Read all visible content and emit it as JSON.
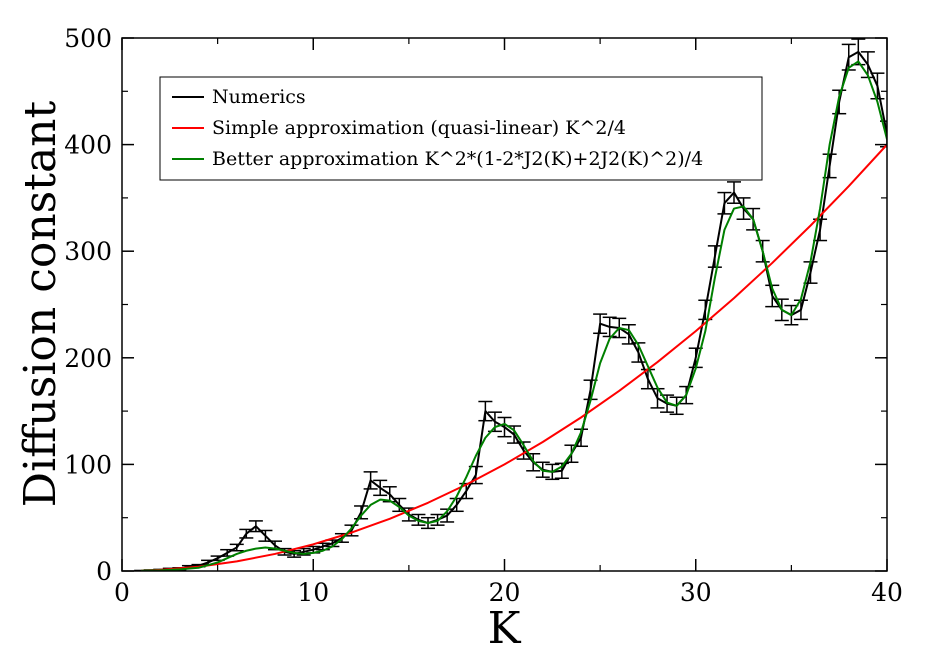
{
  "chart_data": {
    "type": "line",
    "xlabel": "K",
    "ylabel": "Diffusion constant",
    "xlim": [
      0,
      40
    ],
    "ylim": [
      0,
      500
    ],
    "xticks": [
      "0",
      "10",
      "20",
      "30",
      "40"
    ],
    "yticks": [
      "0",
      "100",
      "200",
      "300",
      "400",
      "500"
    ],
    "grid": false,
    "legend_position": "top-left",
    "series": [
      {
        "name": "Numerics",
        "color": "#000000",
        "style": "line-with-errorbars",
        "x": [
          1,
          1.5,
          2,
          2.5,
          3,
          3.5,
          4,
          4.5,
          5,
          5.5,
          6,
          6.5,
          7,
          7.5,
          8,
          8.5,
          9,
          9.5,
          10,
          10.5,
          11,
          11.5,
          12,
          12.5,
          13,
          13.5,
          14,
          14.5,
          15,
          15.5,
          16,
          16.5,
          17,
          17.5,
          18,
          18.5,
          19,
          19.5,
          20,
          20.5,
          21,
          21.5,
          22,
          22.5,
          23,
          23.5,
          24,
          24.5,
          25,
          25.5,
          26,
          26.5,
          27,
          27.5,
          28,
          28.5,
          29,
          29.5,
          30,
          30.5,
          31,
          31.5,
          32,
          32.5,
          33,
          33.5,
          34,
          34.5,
          35,
          35.5,
          36,
          36.5,
          37,
          37.5,
          38,
          38.5,
          39,
          39.5,
          40
        ],
        "y": [
          0,
          0.5,
          1,
          1.5,
          2,
          4,
          5,
          8,
          12,
          17,
          22,
          35,
          42,
          33,
          24,
          18,
          16,
          18,
          20,
          23,
          26,
          31,
          38,
          55,
          85,
          78,
          72,
          62,
          53,
          48,
          45,
          48,
          52,
          62,
          75,
          90,
          150,
          140,
          135,
          128,
          113,
          102,
          95,
          93,
          94,
          110,
          125,
          170,
          232,
          229,
          228,
          222,
          205,
          180,
          162,
          157,
          155,
          165,
          200,
          245,
          295,
          345,
          355,
          340,
          330,
          300,
          258,
          245,
          240,
          245,
          280,
          320,
          380,
          440,
          482,
          487,
          475,
          455,
          410
        ],
        "err": [
          0.5,
          0.5,
          0.5,
          1,
          1,
          1,
          1,
          2,
          2,
          3,
          3,
          4,
          5,
          5,
          4,
          3,
          3,
          3,
          3,
          3,
          3,
          4,
          5,
          6,
          8,
          7,
          7,
          6,
          6,
          5,
          5,
          5,
          6,
          6,
          7,
          8,
          9,
          9,
          9,
          8,
          8,
          8,
          7,
          7,
          7,
          8,
          8,
          9,
          9,
          9,
          9,
          9,
          9,
          9,
          9,
          8,
          8,
          8,
          9,
          9,
          10,
          10,
          10,
          10,
          10,
          10,
          10,
          10,
          9,
          9,
          10,
          10,
          11,
          11,
          12,
          12,
          12,
          12,
          12
        ]
      },
      {
        "name": "Simple approximation (quasi-linear) K^2/4",
        "color": "#ff0000",
        "formula": "K^2/4",
        "x": [
          1,
          2,
          4,
          6,
          8,
          10,
          12,
          14,
          16,
          18,
          20,
          22,
          24,
          26,
          28,
          30,
          32,
          34,
          36,
          38,
          40
        ],
        "y": [
          0.25,
          1,
          4,
          9,
          16,
          25,
          36,
          49,
          64,
          81,
          100,
          121,
          144,
          169,
          196,
          225,
          256,
          289,
          324,
          361,
          400
        ]
      },
      {
        "name": "Better approximation K^2*(1-2*J2(K)+2J2(K)^2)/4",
        "color": "#008000",
        "formula": "K^2*(1-2*J2(K)+2J2(K)^2)/4",
        "x": [
          1,
          2,
          3,
          4,
          5,
          5.5,
          6,
          6.5,
          7,
          7.5,
          8,
          8.5,
          9,
          9.5,
          10,
          10.5,
          11,
          11.5,
          12,
          12.5,
          13,
          13.5,
          14,
          14.5,
          15,
          15.5,
          16,
          16.5,
          17,
          17.5,
          18,
          18.5,
          19,
          19.5,
          20,
          20.5,
          21,
          21.5,
          22,
          22.5,
          23,
          23.5,
          24,
          24.5,
          25,
          25.5,
          26,
          26.5,
          27,
          27.5,
          28,
          28.5,
          29,
          29.5,
          30,
          30.5,
          31,
          31.5,
          32,
          32.5,
          33,
          33.5,
          34,
          34.5,
          35,
          35.5,
          36,
          36.5,
          37,
          37.5,
          38,
          38.5,
          39,
          39.5,
          40
        ],
        "y": [
          0.2,
          0.6,
          1.5,
          3,
          8,
          12,
          16,
          19,
          21,
          22,
          21,
          19,
          17,
          16,
          17,
          19,
          23,
          30,
          40,
          52,
          62,
          67,
          66,
          60,
          52,
          47,
          45,
          47,
          56,
          70,
          88,
          108,
          125,
          135,
          138,
          132,
          118,
          103,
          94,
          93,
          98,
          110,
          130,
          160,
          195,
          218,
          228,
          226,
          212,
          192,
          172,
          158,
          155,
          165,
          190,
          225,
          275,
          320,
          340,
          342,
          330,
          300,
          265,
          245,
          240,
          255,
          290,
          340,
          400,
          445,
          472,
          478,
          465,
          440,
          405
        ]
      }
    ]
  }
}
